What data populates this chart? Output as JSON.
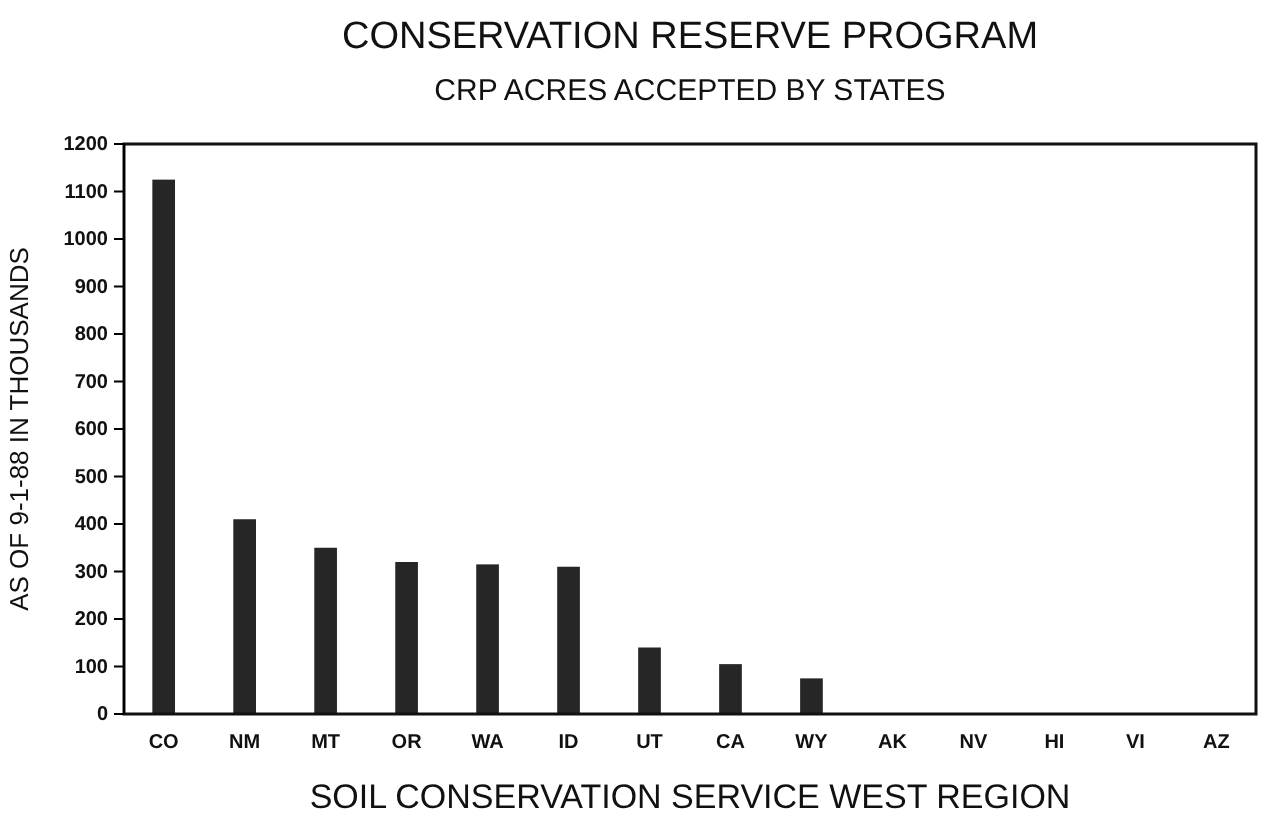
{
  "chart_data": {
    "type": "bar",
    "title": "CONSERVATION RESERVE PROGRAM",
    "subtitle": "CRP ACRES ACCEPTED BY STATES",
    "xlabel": "SOIL CONSERVATION SERVICE WEST REGION",
    "ylabel": "AS OF 9-1-88 IN THOUSANDS",
    "categories": [
      "CO",
      "NM",
      "MT",
      "OR",
      "WA",
      "ID",
      "UT",
      "CA",
      "WY",
      "AK",
      "NV",
      "HI",
      "VI",
      "AZ"
    ],
    "values": [
      1125,
      410,
      350,
      320,
      315,
      310,
      140,
      105,
      75,
      0,
      0,
      0,
      0,
      0
    ],
    "color": "#262626",
    "ylim": [
      0,
      1200
    ],
    "yticks": [
      0,
      100,
      200,
      300,
      400,
      500,
      600,
      700,
      800,
      900,
      1000,
      1100,
      1200
    ],
    "grid": false
  }
}
